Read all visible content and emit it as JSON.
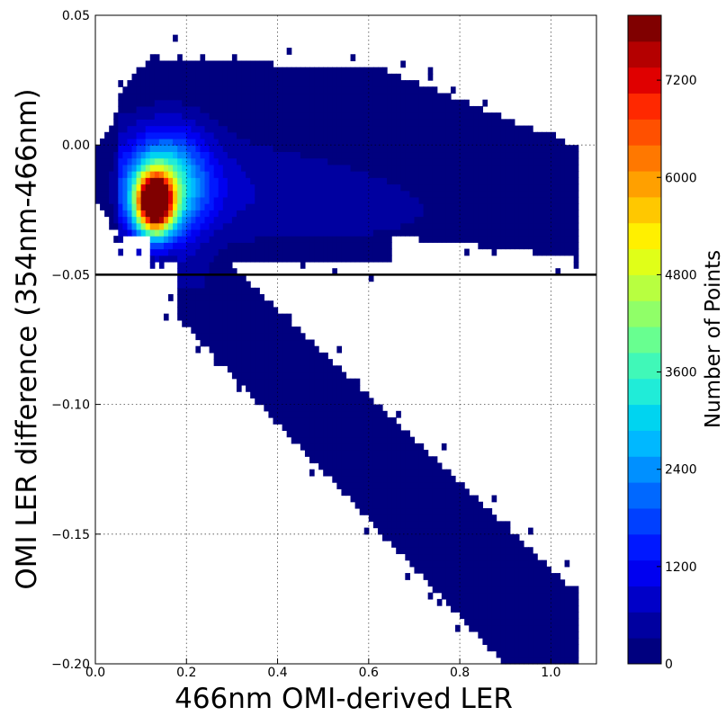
{
  "chart_data": {
    "type": "heatmap",
    "title": "",
    "xlabel": "466nm OMI-derived LER",
    "ylabel": "OMI LER difference (354nm-466nm)",
    "xlim": [
      0.0,
      1.1
    ],
    "ylim": [
      -0.2,
      0.05
    ],
    "x_ticks": [
      "0.0",
      "0.2",
      "0.4",
      "0.6",
      "0.8",
      "1.0"
    ],
    "y_ticks": [
      "0.05",
      "0.00",
      "−0.05",
      "−0.10",
      "−0.15",
      "−0.20"
    ],
    "x_tick_values": [
      0.0,
      0.2,
      0.4,
      0.6,
      0.8,
      1.0
    ],
    "y_tick_values": [
      0.05,
      0.0,
      -0.05,
      -0.1,
      -0.15,
      -0.2
    ],
    "grid": true,
    "reference_line_y": -0.05,
    "colorbar": {
      "label": "Number of Points",
      "min": 0,
      "max": 8000,
      "ticks": [
        "0",
        "1200",
        "2400",
        "3600",
        "4800",
        "6000",
        "7200"
      ],
      "tick_values": [
        0,
        1200,
        2400,
        3600,
        4800,
        6000,
        7200
      ],
      "colors": [
        "#00007f",
        "#0000a0",
        "#0000c8",
        "#0000f0",
        "#0018ff",
        "#0040ff",
        "#0068ff",
        "#0090ff",
        "#00b8ff",
        "#00d4f0",
        "#20ecd8",
        "#40f8b8",
        "#68ff90",
        "#90ff68",
        "#b8ff40",
        "#e0ff18",
        "#fff000",
        "#ffc800",
        "#ffa000",
        "#ff7800",
        "#ff5000",
        "#ff2800",
        "#e00000",
        "#b40000",
        "#800000"
      ]
    },
    "density_components": [
      {
        "description": "main peak",
        "x": 0.13,
        "y": -0.022,
        "peak_count": 8000
      },
      {
        "description": "low-reflectivity cluster",
        "x_range": [
          0.0,
          0.3
        ],
        "y_range": [
          -0.045,
          0.01
        ]
      },
      {
        "description": "upper arm",
        "x_range": [
          0.1,
          1.05
        ],
        "y_range": [
          -0.04,
          0.035
        ]
      },
      {
        "description": "descending arm",
        "x_range": [
          0.2,
          1.05
        ],
        "y_range": [
          -0.19,
          -0.05
        ]
      }
    ]
  }
}
